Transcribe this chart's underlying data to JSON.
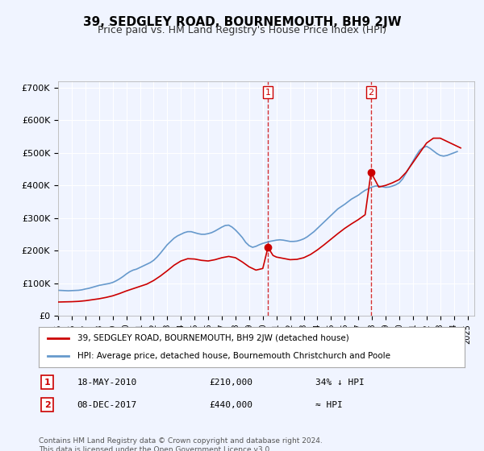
{
  "title": "39, SEDGLEY ROAD, BOURNEMOUTH, BH9 2JW",
  "subtitle": "Price paid vs. HM Land Registry's House Price Index (HPI)",
  "title_fontsize": 11,
  "subtitle_fontsize": 9,
  "ylabel_ticks": [
    "£0",
    "£100K",
    "£200K",
    "£300K",
    "£400K",
    "£500K",
    "£600K",
    "£700K"
  ],
  "ytick_values": [
    0,
    100000,
    200000,
    300000,
    400000,
    500000,
    600000,
    700000
  ],
  "ylim": [
    0,
    720000
  ],
  "xlim_start": 1995.0,
  "xlim_end": 2025.5,
  "background_color": "#f0f4ff",
  "plot_bg_color": "#f0f4ff",
  "grid_color": "#ffffff",
  "red_color": "#cc0000",
  "blue_color": "#6699cc",
  "marker1_x": 2010.38,
  "marker1_y": 210000,
  "marker2_x": 2017.93,
  "marker2_y": 440000,
  "legend_line1": "39, SEDGLEY ROAD, BOURNEMOUTH, BH9 2JW (detached house)",
  "legend_line2": "HPI: Average price, detached house, Bournemouth Christchurch and Poole",
  "ann1_label": "1",
  "ann1_date": "18-MAY-2010",
  "ann1_price": "£210,000",
  "ann1_hpi": "34% ↓ HPI",
  "ann2_label": "2",
  "ann2_date": "08-DEC-2017",
  "ann2_price": "£440,000",
  "ann2_hpi": "≈ HPI",
  "footer": "Contains HM Land Registry data © Crown copyright and database right 2024.\nThis data is licensed under the Open Government Licence v3.0.",
  "hpi_x": [
    1995.0,
    1995.25,
    1995.5,
    1995.75,
    1996.0,
    1996.25,
    1996.5,
    1996.75,
    1997.0,
    1997.25,
    1997.5,
    1997.75,
    1998.0,
    1998.25,
    1998.5,
    1998.75,
    1999.0,
    1999.25,
    1999.5,
    1999.75,
    2000.0,
    2000.25,
    2000.5,
    2000.75,
    2001.0,
    2001.25,
    2001.5,
    2001.75,
    2002.0,
    2002.25,
    2002.5,
    2002.75,
    2003.0,
    2003.25,
    2003.5,
    2003.75,
    2004.0,
    2004.25,
    2004.5,
    2004.75,
    2005.0,
    2005.25,
    2005.5,
    2005.75,
    2006.0,
    2006.25,
    2006.5,
    2006.75,
    2007.0,
    2007.25,
    2007.5,
    2007.75,
    2008.0,
    2008.25,
    2008.5,
    2008.75,
    2009.0,
    2009.25,
    2009.5,
    2009.75,
    2010.0,
    2010.25,
    2010.5,
    2010.75,
    2011.0,
    2011.25,
    2011.5,
    2011.75,
    2012.0,
    2012.25,
    2012.5,
    2012.75,
    2013.0,
    2013.25,
    2013.5,
    2013.75,
    2014.0,
    2014.25,
    2014.5,
    2014.75,
    2015.0,
    2015.25,
    2015.5,
    2015.75,
    2016.0,
    2016.25,
    2016.5,
    2016.75,
    2017.0,
    2017.25,
    2017.5,
    2017.75,
    2018.0,
    2018.25,
    2018.5,
    2018.75,
    2019.0,
    2019.25,
    2019.5,
    2019.75,
    2020.0,
    2020.25,
    2020.5,
    2020.75,
    2021.0,
    2021.25,
    2021.5,
    2021.75,
    2022.0,
    2022.25,
    2022.5,
    2022.75,
    2023.0,
    2023.25,
    2023.5,
    2023.75,
    2024.0,
    2024.25
  ],
  "hpi_y": [
    78000,
    77500,
    77000,
    76500,
    77000,
    77500,
    78000,
    79500,
    82000,
    84000,
    87000,
    90000,
    93000,
    95000,
    97000,
    99000,
    102000,
    107000,
    113000,
    120000,
    128000,
    135000,
    140000,
    143000,
    148000,
    153000,
    158000,
    163000,
    170000,
    180000,
    192000,
    205000,
    218000,
    228000,
    238000,
    245000,
    250000,
    255000,
    258000,
    258000,
    255000,
    252000,
    250000,
    250000,
    252000,
    255000,
    260000,
    266000,
    272000,
    277000,
    278000,
    272000,
    263000,
    252000,
    240000,
    225000,
    215000,
    210000,
    213000,
    218000,
    222000,
    225000,
    228000,
    230000,
    232000,
    233000,
    232000,
    230000,
    228000,
    228000,
    229000,
    232000,
    236000,
    242000,
    250000,
    258000,
    268000,
    278000,
    288000,
    298000,
    308000,
    318000,
    328000,
    335000,
    342000,
    350000,
    358000,
    364000,
    370000,
    378000,
    385000,
    390000,
    395000,
    398000,
    398000,
    396000,
    394000,
    395000,
    398000,
    402000,
    408000,
    420000,
    438000,
    456000,
    474000,
    492000,
    508000,
    516000,
    520000,
    514000,
    506000,
    498000,
    492000,
    490000,
    492000,
    496000,
    500000,
    504000
  ],
  "red_x": [
    1995.0,
    1995.5,
    1996.0,
    1996.5,
    1997.0,
    1997.5,
    1998.0,
    1998.5,
    1999.0,
    1999.5,
    2000.0,
    2000.5,
    2001.0,
    2001.5,
    2002.0,
    2002.5,
    2003.0,
    2003.5,
    2004.0,
    2004.5,
    2005.0,
    2005.5,
    2006.0,
    2006.5,
    2007.0,
    2007.5,
    2008.0,
    2008.5,
    2009.0,
    2009.5,
    2010.0,
    2010.38,
    2010.75,
    2011.0,
    2011.5,
    2012.0,
    2012.5,
    2013.0,
    2013.5,
    2014.0,
    2014.5,
    2015.0,
    2015.5,
    2016.0,
    2016.5,
    2017.0,
    2017.5,
    2017.93,
    2018.5,
    2019.0,
    2019.5,
    2020.0,
    2020.5,
    2021.0,
    2021.5,
    2022.0,
    2022.5,
    2023.0,
    2023.5,
    2024.0,
    2024.5
  ],
  "red_y": [
    42000,
    42500,
    43000,
    44000,
    46000,
    49000,
    52000,
    56000,
    61000,
    68000,
    76000,
    83000,
    90000,
    97000,
    108000,
    122000,
    138000,
    155000,
    168000,
    175000,
    174000,
    170000,
    168000,
    172000,
    178000,
    182000,
    178000,
    165000,
    150000,
    140000,
    145000,
    210000,
    185000,
    180000,
    176000,
    172000,
    173000,
    178000,
    188000,
    202000,
    218000,
    235000,
    252000,
    268000,
    282000,
    295000,
    310000,
    440000,
    395000,
    400000,
    408000,
    418000,
    440000,
    470000,
    500000,
    530000,
    545000,
    545000,
    535000,
    525000,
    515000
  ]
}
